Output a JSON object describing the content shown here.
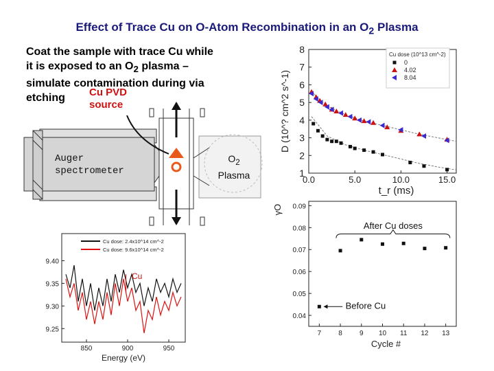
{
  "slide": {
    "title_main": "Effect of Trace Cu on O-Atom Recombination in an O",
    "title_sub": "2",
    "title_tail": " Plasma",
    "desc_line1": "Coat the sample with trace Cu while",
    "desc_line2_a": "it is exposed to an O",
    "desc_line2_sub": "2",
    "desc_line2_b": " plasma –",
    "desc_line3": "simulate contamination during via",
    "desc_line4": "etching",
    "pvd_line1": "Cu PVD",
    "pvd_line2": "source",
    "auger_line1": "Auger",
    "auger_line2": "spectrometer",
    "plasma_line1_a": "O",
    "plasma_line1_sub": "2",
    "plasma_line2": "Plasma"
  },
  "chart_data": [
    {
      "type": "scatter",
      "title": "",
      "xlabel": "t_r (ms)",
      "ylabel": "D (10^? cm^2 s^-1)",
      "x_ticks": [
        "0.0",
        "5.0",
        "10.0",
        "15.0"
      ],
      "y_ticks": [
        "1",
        "2",
        "3",
        "4",
        "5",
        "6",
        "7",
        "8"
      ],
      "xlim": [
        0,
        16
      ],
      "ylim": [
        1,
        8
      ],
      "legend_title": "Cu dose (10^13 cm^-2)",
      "legend_position": "top-right",
      "series": [
        {
          "name": "0",
          "color": "#111111",
          "marker": "square",
          "points": [
            [
              0.5,
              3.8
            ],
            [
              1.0,
              3.4
            ],
            [
              1.5,
              3.1
            ],
            [
              2,
              2.9
            ],
            [
              2.5,
              2.8
            ],
            [
              3,
              2.8
            ],
            [
              3.5,
              2.7
            ],
            [
              4.5,
              2.5
            ],
            [
              5,
              2.4
            ],
            [
              6,
              2.3
            ],
            [
              7,
              2.2
            ],
            [
              8,
              2.05
            ],
            [
              11,
              1.6
            ],
            [
              12.5,
              1.4
            ],
            [
              15,
              1.2
            ]
          ]
        },
        {
          "name": "4.02",
          "color": "#cc1111",
          "marker": "triangle-up",
          "points": [
            [
              0.3,
              5.6
            ],
            [
              0.8,
              5.3
            ],
            [
              1.2,
              5.1
            ],
            [
              1.8,
              4.9
            ],
            [
              2.5,
              4.6
            ],
            [
              3,
              4.5
            ],
            [
              4,
              4.3
            ],
            [
              5,
              4.1
            ],
            [
              6,
              3.95
            ],
            [
              7,
              3.85
            ],
            [
              8.5,
              3.6
            ],
            [
              10,
              3.4
            ],
            [
              12,
              3.2
            ],
            [
              15,
              2.9
            ]
          ]
        },
        {
          "name": "8.04",
          "color": "#3a2ad0",
          "marker": "triangle-left",
          "points": [
            [
              0.3,
              5.5
            ],
            [
              0.8,
              5.2
            ],
            [
              1.3,
              5.0
            ],
            [
              2,
              4.75
            ],
            [
              2.5,
              4.6
            ],
            [
              3.5,
              4.4
            ],
            [
              4.5,
              4.2
            ],
            [
              5.5,
              4.0
            ],
            [
              6.5,
              3.9
            ],
            [
              8,
              3.7
            ],
            [
              10,
              3.45
            ],
            [
              12.5,
              3.1
            ],
            [
              15,
              2.85
            ]
          ]
        }
      ],
      "fit_curves": [
        {
          "color": "#777777",
          "points": [
            [
              0.3,
              4.2
            ],
            [
              2,
              3.1
            ],
            [
              4,
              2.6
            ],
            [
              6,
              2.3
            ],
            [
              8,
              2.05
            ],
            [
              10,
              1.8
            ],
            [
              12,
              1.55
            ],
            [
              14,
              1.35
            ],
            [
              16,
              1.18
            ]
          ]
        },
        {
          "color": "#777777",
          "points": [
            [
              0.3,
              5.6
            ],
            [
              2,
              4.8
            ],
            [
              4,
              4.3
            ],
            [
              6,
              3.95
            ],
            [
              8,
              3.7
            ],
            [
              10,
              3.45
            ],
            [
              12,
              3.2
            ],
            [
              14,
              3.0
            ],
            [
              16,
              2.8
            ]
          ]
        }
      ]
    },
    {
      "type": "scatter",
      "title": "",
      "xlabel": "Cycle #",
      "ylabel": "γO",
      "x_ticks": [
        "7",
        "8",
        "9",
        "10",
        "11",
        "12",
        "13"
      ],
      "y_ticks": [
        "0.04",
        "0.05",
        "0.06",
        "0.07",
        "0.08",
        "0.09"
      ],
      "xlim": [
        6.5,
        13.5
      ],
      "ylim": [
        0.035,
        0.092
      ],
      "values": [
        [
          7,
          0.044
        ],
        [
          8,
          0.0695
        ],
        [
          9,
          0.0745
        ],
        [
          10,
          0.0725
        ],
        [
          11,
          0.0728
        ],
        [
          12,
          0.0705
        ],
        [
          13,
          0.0708
        ]
      ],
      "annotations": [
        {
          "text": "After Cu doses",
          "x": 10.5,
          "y": 0.0795
        },
        {
          "text": "Before Cu",
          "x": 9.2,
          "y": 0.0445
        }
      ]
    },
    {
      "type": "line",
      "title": "",
      "xlabel": "Energy (eV)",
      "ylabel": "",
      "x_ticks": [
        "850",
        "900",
        "950"
      ],
      "y_ticks": [
        "9.25",
        "9.30",
        "9.35",
        "9.40"
      ],
      "xlim": [
        820,
        970
      ],
      "ylim": [
        9.22,
        9.46
      ],
      "legend_position": "top-right",
      "legend_dose_prefix": "Cu dose: ",
      "legend_unit": "cm",
      "annotation": "Cu",
      "series": [
        {
          "name": "Cu dose: 2.4x10^14 cm^-2",
          "color": "#111111",
          "points": [
            [
              825,
              9.37
            ],
            [
              830,
              9.34
            ],
            [
              835,
              9.39
            ],
            [
              840,
              9.31
            ],
            [
              845,
              9.36
            ],
            [
              850,
              9.3
            ],
            [
              855,
              9.35
            ],
            [
              860,
              9.29
            ],
            [
              865,
              9.34
            ],
            [
              870,
              9.3
            ],
            [
              875,
              9.36
            ],
            [
              880,
              9.31
            ],
            [
              885,
              9.37
            ],
            [
              890,
              9.33
            ],
            [
              895,
              9.38
            ],
            [
              900,
              9.34
            ],
            [
              905,
              9.37
            ],
            [
              910,
              9.33
            ],
            [
              915,
              9.35
            ],
            [
              920,
              9.3
            ],
            [
              925,
              9.34
            ],
            [
              930,
              9.31
            ],
            [
              935,
              9.36
            ],
            [
              940,
              9.33
            ],
            [
              945,
              9.35
            ],
            [
              950,
              9.32
            ],
            [
              955,
              9.36
            ],
            [
              960,
              9.33
            ],
            [
              965,
              9.35
            ]
          ]
        },
        {
          "name": "Cu dose: 9.6x10^14 cm^-2",
          "color": "#dd1111",
          "points": [
            [
              825,
              9.36
            ],
            [
              830,
              9.32
            ],
            [
              835,
              9.35
            ],
            [
              840,
              9.29
            ],
            [
              845,
              9.33
            ],
            [
              850,
              9.27
            ],
            [
              855,
              9.31
            ],
            [
              860,
              9.26
            ],
            [
              865,
              9.31
            ],
            [
              870,
              9.27
            ],
            [
              875,
              9.33
            ],
            [
              880,
              9.28
            ],
            [
              885,
              9.35
            ],
            [
              890,
              9.3
            ],
            [
              895,
              9.36
            ],
            [
              900,
              9.31
            ],
            [
              905,
              9.34
            ],
            [
              910,
              9.29
            ],
            [
              915,
              9.31
            ],
            [
              920,
              9.24
            ],
            [
              925,
              9.29
            ],
            [
              930,
              9.27
            ],
            [
              935,
              9.32
            ],
            [
              940,
              9.28
            ],
            [
              945,
              9.31
            ],
            [
              950,
              9.29
            ],
            [
              955,
              9.33
            ],
            [
              960,
              9.3
            ],
            [
              965,
              9.32
            ]
          ]
        }
      ]
    }
  ]
}
